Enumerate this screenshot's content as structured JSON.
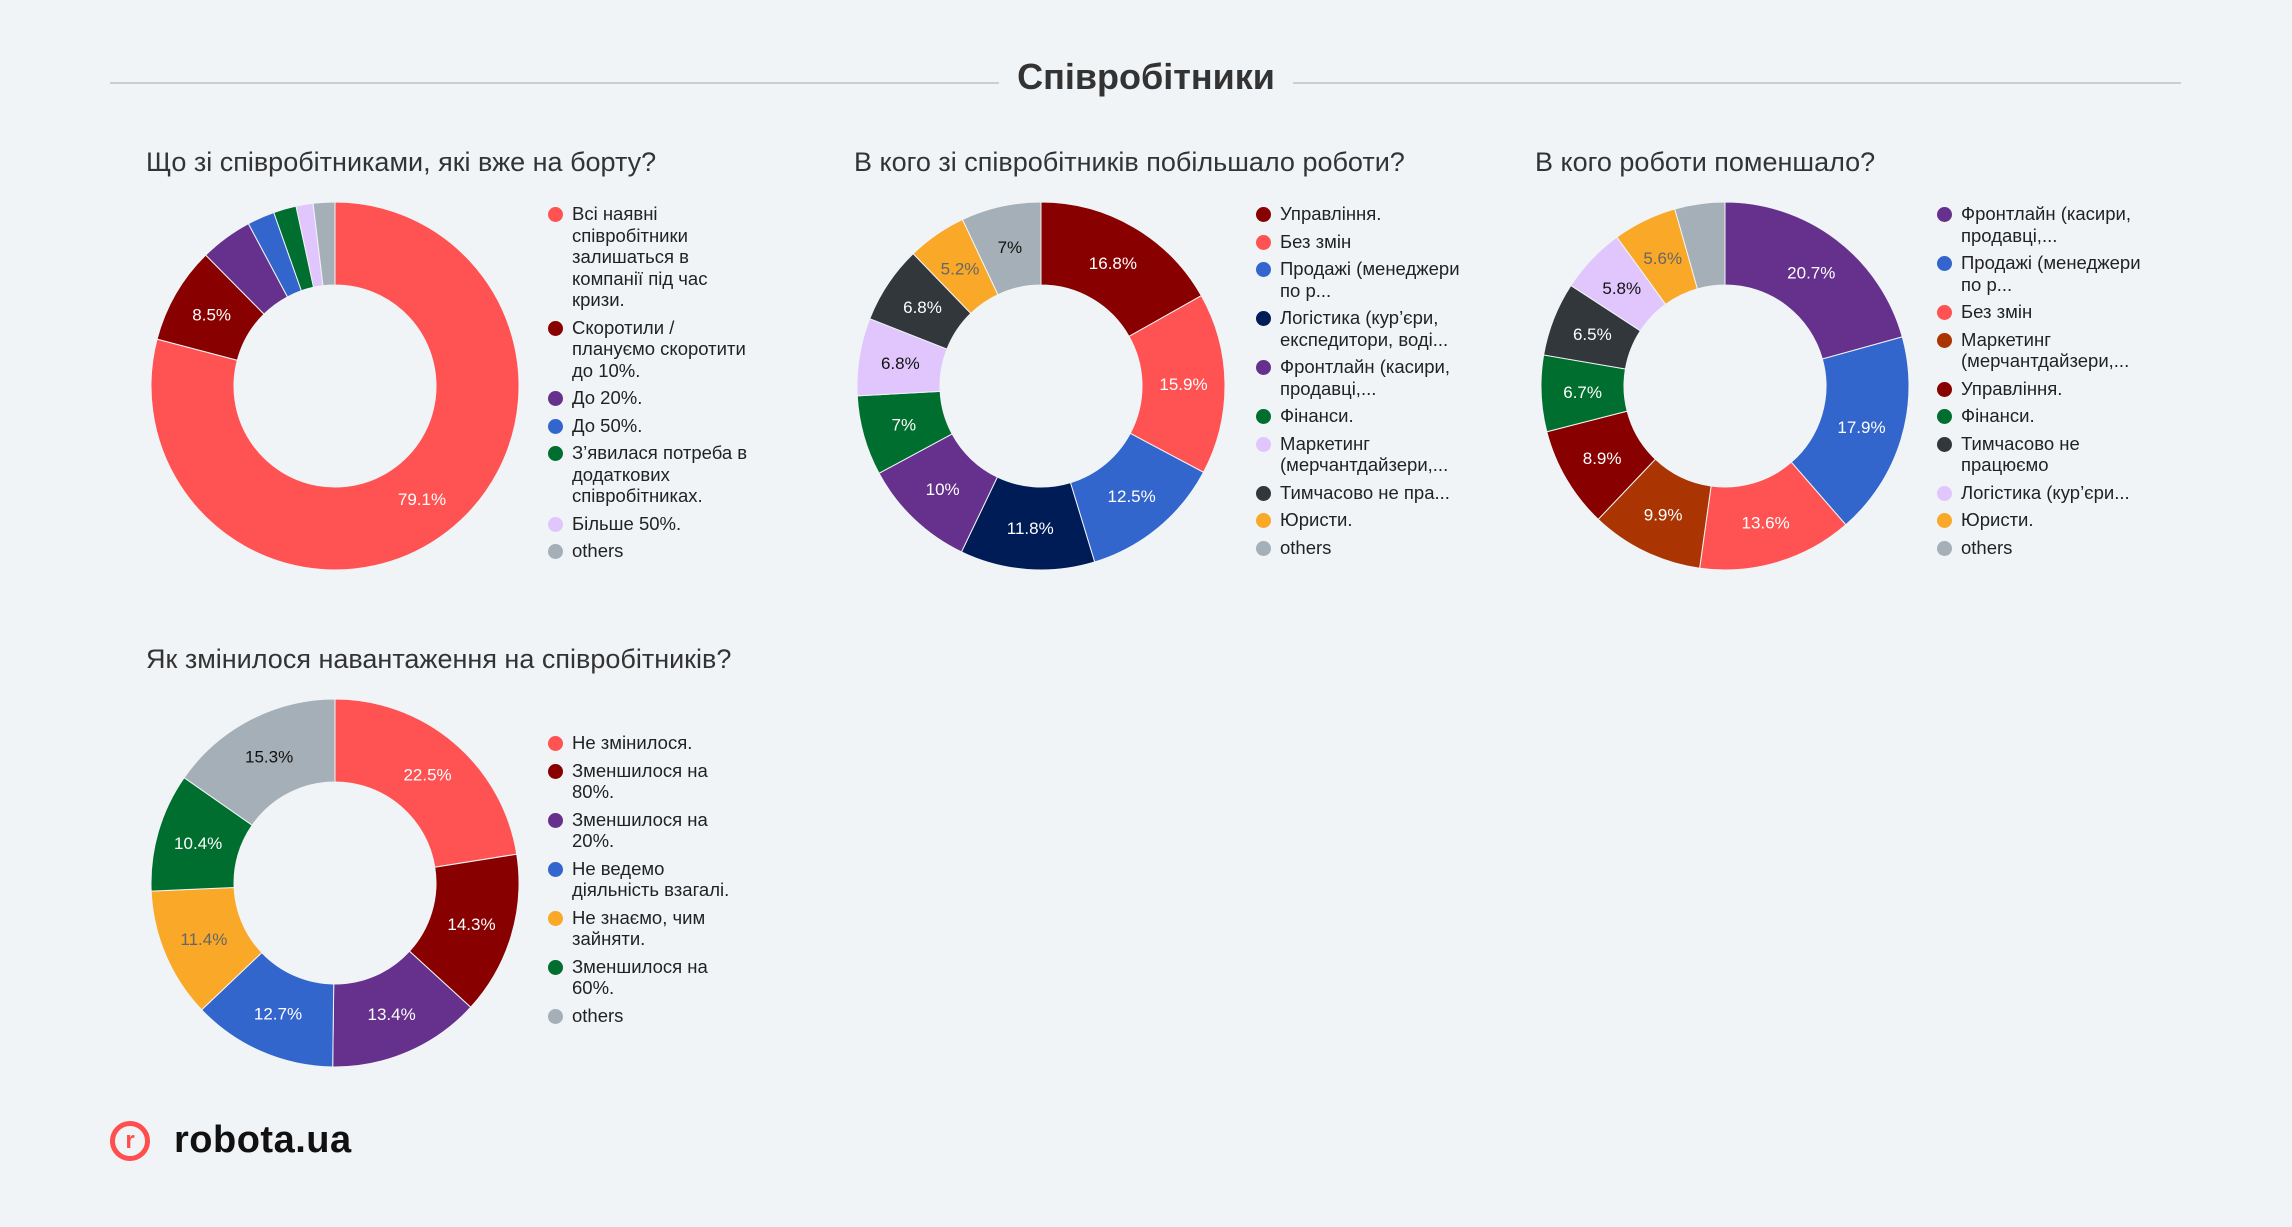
{
  "header": {
    "title": "Співробітники"
  },
  "logo": {
    "mark": "r",
    "text": "robota.ua"
  },
  "chart_data": [
    {
      "type": "pie",
      "title": "Що зі співробітниками, які вже на борту?",
      "categories": [
        "Всі наявні співробітники залишаться в компанії під час кризи.",
        "Скоротили / плануємо скоротити до 10%.",
        "До 20%.",
        "До 50%.",
        "З’явилася потреба в додаткових співробітниках.",
        "Більше 50%.",
        "others"
      ],
      "values": [
        79.1,
        8.5,
        4.6,
        2.4,
        2.0,
        1.5,
        1.9
      ],
      "labels": [
        "79.1%",
        "8.5%",
        "",
        "",
        "",
        "",
        ""
      ],
      "colors": [
        "#ff5252",
        "#880000",
        "#66318c",
        "#3366cc",
        "#006e2e",
        "#e0c6fc",
        "#a4afb7"
      ],
      "legend_position": "right"
    },
    {
      "type": "pie",
      "title": "В кого зі співробітників побільшало роботи?",
      "categories": [
        "Управління.",
        "Без змін",
        "Продажі (менеджери по р...",
        "Логістика (кур’єри, експедитори, воді...",
        "Фронтлайн (касири, продавці,...",
        "Фінанси.",
        "Маркетинг (мерчантдайзери,...",
        "Тимчасово не пра...",
        "Юристи.",
        "others"
      ],
      "values": [
        16.8,
        15.9,
        12.5,
        11.8,
        10,
        7,
        6.8,
        6.8,
        5.2,
        7
      ],
      "labels": [
        "16.8%",
        "15.9%",
        "12.5%",
        "11.8%",
        "10%",
        "7%",
        "6.8%",
        "6.8%",
        "5.2%",
        "7%"
      ],
      "colors": [
        "#880000",
        "#ff5252",
        "#3366cc",
        "#001c57",
        "#66318c",
        "#006e2e",
        "#e0c6fc",
        "#32373c",
        "#f9a828",
        "#a4afb7"
      ],
      "legend_position": "right"
    },
    {
      "type": "pie",
      "title": "В кого роботи поменшало?",
      "categories": [
        "Фронтлайн (касири, продавці,...",
        "Продажі (менеджери по р...",
        "Без змін",
        "Маркетинг (мерчантдайзери,...",
        "Управління.",
        "Фінанси.",
        "Тимчасово не працюємо",
        "Логістика (кур’єри...",
        "Юристи.",
        "others"
      ],
      "values": [
        20.7,
        17.9,
        13.6,
        9.9,
        8.9,
        6.7,
        6.5,
        5.8,
        5.6,
        4.4
      ],
      "labels": [
        "20.7%",
        "17.9%",
        "13.6%",
        "9.9%",
        "8.9%",
        "6.7%",
        "6.5%",
        "5.8%",
        "5.6%",
        ""
      ],
      "colors": [
        "#66318c",
        "#3366cc",
        "#ff5252",
        "#ab3502",
        "#880000",
        "#006e2e",
        "#32373c",
        "#e0c6fc",
        "#f9a828",
        "#a4afb7"
      ],
      "legend_position": "right"
    },
    {
      "type": "pie",
      "title": "Як змінилося навантаження на співробітників?",
      "categories": [
        "Не змінилося.",
        "Зменшилося на 80%.",
        "Зменшилося на 20%.",
        "Не ведемо діяльність взагалі.",
        "Не знаємо, чим зайняти.",
        "Зменшилося на 60%.",
        "others"
      ],
      "values": [
        22.5,
        14.3,
        13.4,
        12.7,
        11.4,
        10.4,
        15.3
      ],
      "labels": [
        "22.5%",
        "14.3%",
        "13.4%",
        "12.7%",
        "11.4%",
        "10.4%",
        "15.3%"
      ],
      "colors": [
        "#ff5252",
        "#880000",
        "#66318c",
        "#3366cc",
        "#f9a828",
        "#006e2e",
        "#a4afb7"
      ],
      "legend_position": "right"
    }
  ]
}
